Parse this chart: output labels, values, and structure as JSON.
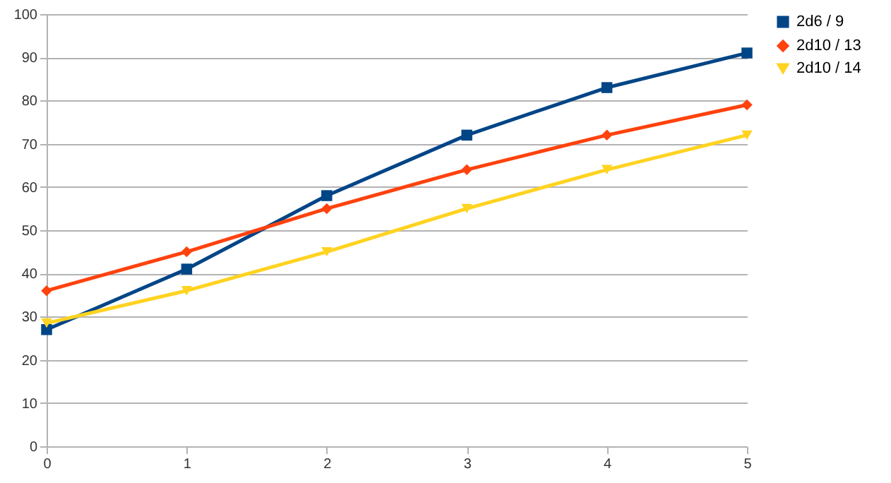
{
  "chart_data": {
    "type": "line",
    "x": [
      0,
      1,
      2,
      3,
      4,
      5
    ],
    "series": [
      {
        "name": "2d6 / 9",
        "color": "#004586",
        "marker": "square",
        "values": [
          27,
          41,
          58,
          72,
          83,
          91
        ]
      },
      {
        "name": "2d10 / 13",
        "color": "#ff420e",
        "marker": "diamond",
        "values": [
          36,
          45,
          55,
          64,
          72,
          79
        ]
      },
      {
        "name": "2d10  / 14",
        "color": "#ffd320",
        "marker": "triangle",
        "values": [
          28.5,
          36,
          45,
          55,
          64,
          72
        ]
      }
    ],
    "xlim": [
      0,
      5
    ],
    "xticks": [
      0,
      1,
      2,
      3,
      4,
      5
    ],
    "ylim": [
      0,
      100
    ],
    "yticks": [
      0,
      10,
      20,
      30,
      40,
      50,
      60,
      70,
      80,
      90,
      100
    ],
    "grid": "y",
    "legend": "right",
    "line_style": "solid"
  }
}
